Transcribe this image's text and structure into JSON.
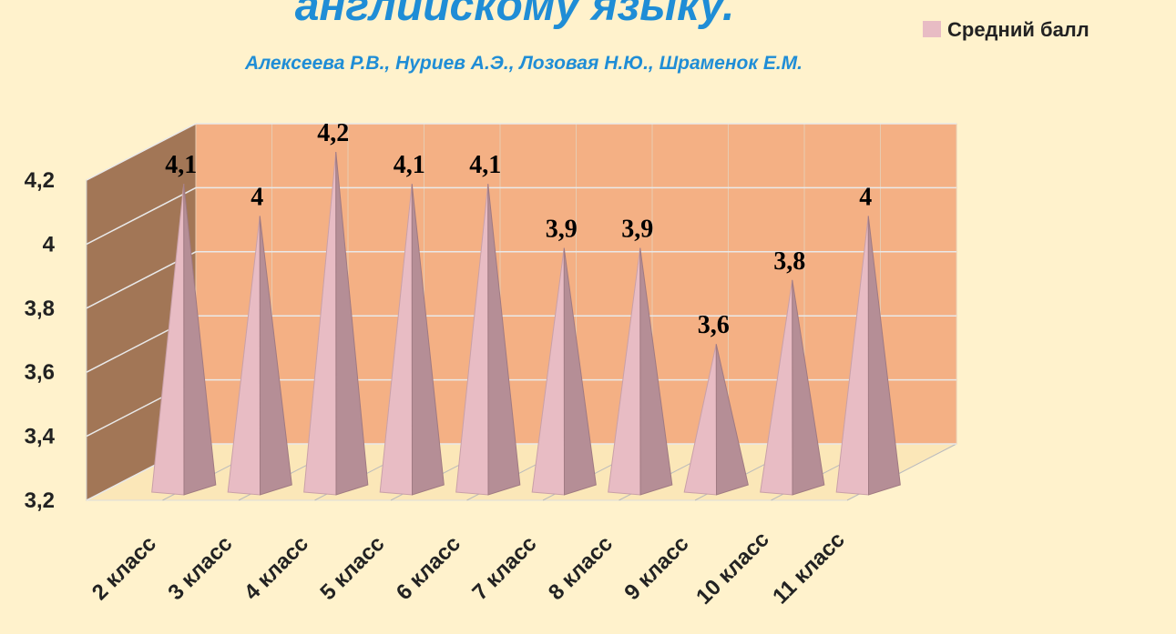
{
  "chart_data": {
    "type": "pyramid3d",
    "title": "английскому языку.",
    "subtitle": "Алексеева Р.В., Нуриев А.Э., Лозовая Н.Ю., Шраменок Е.М.",
    "categories": [
      "2 класс",
      "3 класс",
      "4 класс",
      "5 класс",
      "6 класс",
      "7 класс",
      "8 класс",
      "9 класс",
      "10 класс",
      "11 класс"
    ],
    "series": [
      {
        "name": "Средний балл",
        "color": "#e8bcc4",
        "values": [
          4.1,
          4,
          4.2,
          4.1,
          4.1,
          3.9,
          3.9,
          3.6,
          3.8,
          4
        ],
        "value_labels": [
          "4,1",
          "4",
          "4,2",
          "4,1",
          "4,1",
          "3,9",
          "3,9",
          "3,6",
          "3,8",
          "4"
        ]
      }
    ],
    "ylim": [
      3.2,
      4.2
    ],
    "yticks": [
      {
        "value": 3.2,
        "label": "3,2"
      },
      {
        "value": 3.4,
        "label": "3,4"
      },
      {
        "value": 3.6,
        "label": "3,6"
      },
      {
        "value": 3.8,
        "label": "3,8"
      },
      4,
      {
        "value": 4.2,
        "label": "4,2"
      }
    ],
    "grid": true
  }
}
